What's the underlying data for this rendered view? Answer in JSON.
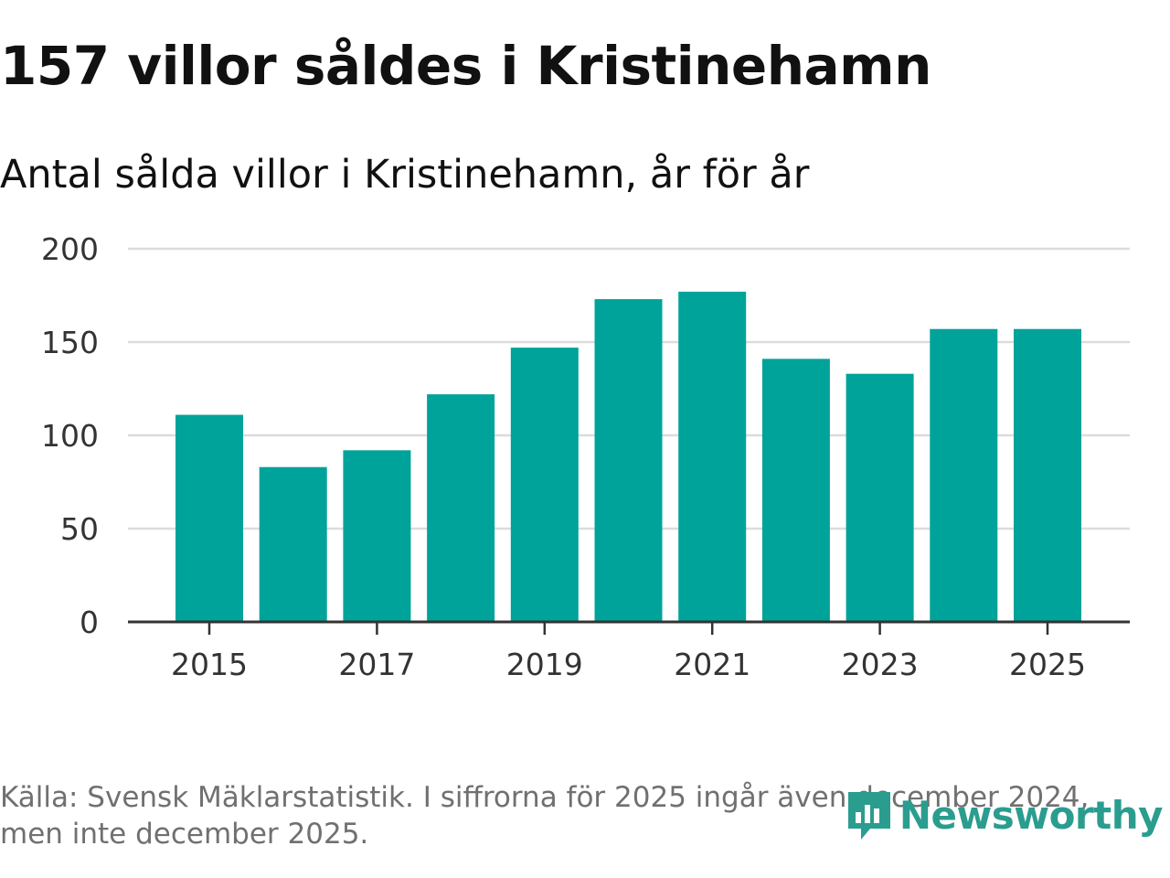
{
  "header": {
    "title": "157 villor såldes i Kristinehamn",
    "subtitle": "Antal sålda villor i Kristinehamn, år för år"
  },
  "chart_data": {
    "type": "bar",
    "title": "157 villor såldes i Kristinehamn",
    "subtitle": "Antal sålda villor i Kristinehamn, år för år",
    "categories": [
      "2015",
      "2016",
      "2017",
      "2018",
      "2019",
      "2020",
      "2021",
      "2022",
      "2023",
      "2024",
      "2025"
    ],
    "values": [
      111,
      83,
      92,
      122,
      147,
      173,
      177,
      141,
      133,
      157,
      157
    ],
    "x_tick_labels": [
      "2015",
      "2017",
      "2019",
      "2021",
      "2023",
      "2025"
    ],
    "y_ticks": [
      0,
      50,
      100,
      150,
      200
    ],
    "ylim": [
      0,
      200
    ],
    "xlabel": "",
    "ylabel": "",
    "grid": true,
    "bar_color": "#00a39a"
  },
  "footer": {
    "source": "Källa: Svensk Mäklarstatistik. I siffrorna för 2025 ingår även december 2024, men inte december 2025."
  },
  "logo": {
    "text": "Newsworthy",
    "icon": "newsworthy-logo-icon",
    "color": "#2a9d8f"
  }
}
